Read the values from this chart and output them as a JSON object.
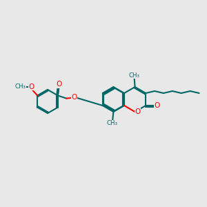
{
  "bg_color": "#e8e8e8",
  "bond_color": "#006666",
  "oxygen_color": "#ff0000",
  "lw": 1.5,
  "fig_w": 3.0,
  "fig_h": 3.0,
  "dpi": 100,
  "xlim": [
    0,
    10
  ],
  "ylim": [
    0,
    10
  ]
}
